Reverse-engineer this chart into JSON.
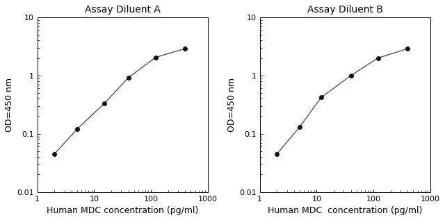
{
  "chart_A": {
    "title": "Assay Diluent A",
    "x": [
      2,
      5,
      15,
      40,
      120,
      400
    ],
    "y": [
      0.045,
      0.12,
      0.33,
      0.92,
      2.05,
      2.9
    ],
    "xlabel": "Human MDC concentration (pg/ml)",
    "ylabel": "OD=450 nm",
    "xlim": [
      1,
      1000
    ],
    "ylim": [
      0.01,
      10
    ]
  },
  "chart_B": {
    "title": "Assay Diluent B",
    "x": [
      2,
      5,
      12,
      40,
      120,
      400
    ],
    "y": [
      0.045,
      0.13,
      0.42,
      1.0,
      2.0,
      2.9
    ],
    "xlabel": "Human MDC  concentration (pg/ml)",
    "ylabel": "OD=450 nm",
    "xlim": [
      1,
      1000
    ],
    "ylim": [
      0.01,
      10
    ]
  },
  "yticks": [
    0.01,
    0.1,
    1,
    10
  ],
  "ytick_labels": [
    "0.01",
    "0.1",
    "1",
    "10"
  ],
  "xticks": [
    1,
    10,
    100,
    1000
  ],
  "xtick_labels": [
    "1",
    "10",
    "100",
    "1000"
  ],
  "line_color": "#555555",
  "marker_color": "#111111",
  "bg_color": "#ffffff",
  "title_fontsize": 10,
  "label_fontsize": 9,
  "tick_fontsize": 8
}
